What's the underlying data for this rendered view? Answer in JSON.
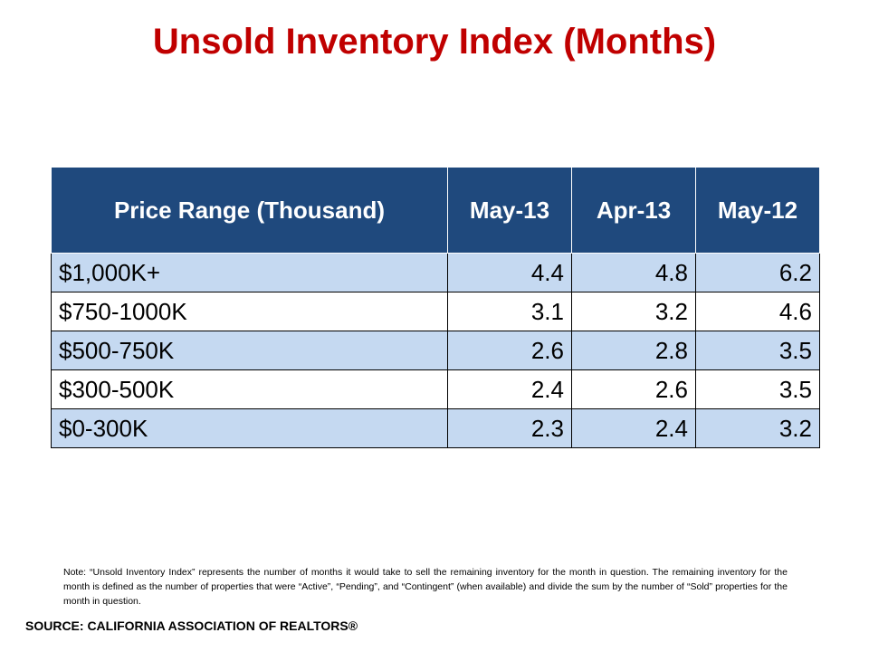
{
  "chart_data": {
    "type": "table",
    "title": "Unsold Inventory Index (Months)",
    "columns": [
      "Price Range (Thousand)",
      "May-13",
      "Apr-13",
      "May-12"
    ],
    "rows": [
      {
        "label": "$1,000K+",
        "values": [
          "4.4",
          "4.8",
          "6.2"
        ]
      },
      {
        "label": "$750-1000K",
        "values": [
          "3.1",
          "3.2",
          "4.6"
        ]
      },
      {
        "label": "$500-750K",
        "values": [
          "2.6",
          "2.8",
          "3.5"
        ]
      },
      {
        "label": "$300-500K",
        "values": [
          "2.4",
          "2.6",
          "3.5"
        ]
      },
      {
        "label": "$0-300K",
        "values": [
          "2.3",
          "2.4",
          "3.2"
        ]
      }
    ]
  },
  "note": "Note: “Unsold Inventory Index” represents the number of months it would take to sell the remaining inventory for the month in question. The remaining inventory for the month is defined as the number of properties that were “Active”, “Pending”, and “Contingent” (when available) and divide the sum by the number of “Sold” properties for the month in question.",
  "source": "SOURCE: CALIFORNIA ASSOCIATION OF REALTORS®",
  "colors": {
    "title": "#c00000",
    "header_bg": "#1f497d",
    "row_band": "#c5d9f1"
  }
}
